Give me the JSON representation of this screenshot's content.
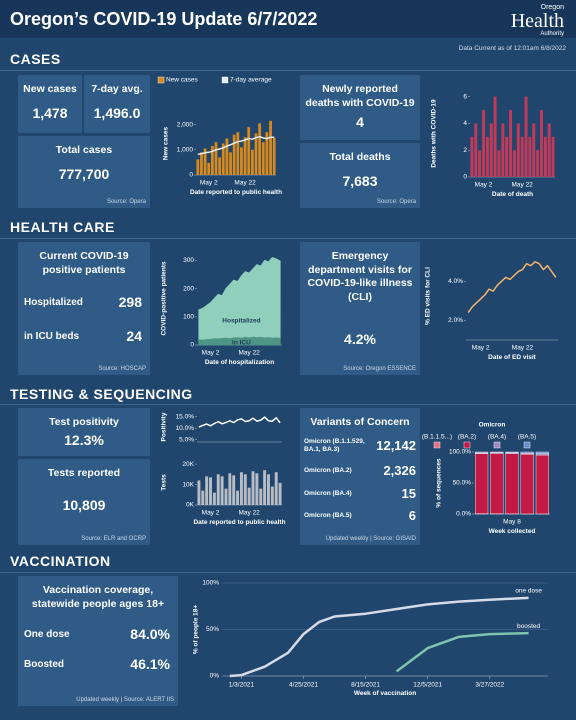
{
  "header": {
    "title": "Oregon’s COVID-19 Update 6/7/2022",
    "logo": {
      "top": "Oregon",
      "main": "Health",
      "sub": "Authority"
    },
    "data_current": "Data Current as of 12:01am 6/8/2022"
  },
  "cases": {
    "heading": "CASES",
    "new_cases_label": "New cases",
    "new_cases": "1,478",
    "avg_label": "7-day avg.",
    "avg": "1,496.0",
    "total_label": "Total cases",
    "total": "777,700",
    "source": "Source: Opera",
    "deaths_label": "Newly reported deaths with COVID-19",
    "deaths": "4",
    "total_deaths_label": "Total deaths",
    "total_deaths": "7,683",
    "deaths_source": "Source: Opera"
  },
  "health_care": {
    "heading": "HEALTH CARE",
    "patients_label": "Current COVID-19 positive patients",
    "hosp_label": "Hospitalized",
    "hosp": "298",
    "icu_label": "in ICU beds",
    "icu": "24",
    "source": "Source: HOSCAP",
    "ed_label": "Emergency department visits for COVID-19-like illness (CLI)",
    "ed": "4.2%",
    "ed_source": "Source: Oregon ESSENCE"
  },
  "testing": {
    "heading": "TESTING & SEQUENCING",
    "positivity_label": "Test positivity",
    "positivity": "12.3%",
    "tests_label": "Tests reported",
    "tests": "10,809",
    "source": "Source: ELR and OCRP",
    "variants_title": "Variants of Concern",
    "variants": [
      [
        "Omicron (B.1.1.529, BA.1, BA.3)",
        "12,142"
      ],
      [
        "Omicron (BA.2)",
        "2,326"
      ],
      [
        "Omicron (BA.4)",
        "15"
      ],
      [
        "Omicron (BA.5)",
        "6"
      ]
    ],
    "variants_source": "Updated weekly | Source: GISAID"
  },
  "vaccination": {
    "heading": "VACCINATION",
    "coverage_label": "Vaccination coverage, statewide people ages 18+",
    "one_dose_label": "One dose",
    "one_dose": "84.0%",
    "boosted_label": "Boosted",
    "boosted": "46.1%",
    "source": "Updated weekly | Source: ALERT IIS"
  },
  "chart_data": [
    {
      "type": "bar",
      "ylabel": "New cases",
      "xlabel": "Date reported to public health",
      "legend": "top",
      "categories": [
        null,
        null,
        null,
        "May 2",
        null,
        null,
        null,
        null,
        null,
        null,
        null,
        null,
        null,
        "May 22",
        null,
        null,
        null,
        null,
        null,
        null,
        null,
        null
      ],
      "series": [
        {
          "name": "New cases",
          "color": "#d98a1c",
          "values": [
            620,
            900,
            1050,
            480,
            1150,
            1300,
            700,
            1250,
            1450,
            900,
            1600,
            1700,
            1100,
            1500,
            1900,
            1000,
            1650,
            2050,
            1300,
            1700,
            2150,
            1478
          ]
        },
        {
          "name": "7-day average",
          "color": "#e8eef2",
          "type": "line",
          "values": [
            820,
            850,
            880,
            900,
            940,
            1000,
            1030,
            1080,
            1150,
            1200,
            1260,
            1320,
            1350,
            1390,
            1450,
            1420,
            1480,
            1520,
            1470,
            1440,
            1500,
            1496
          ]
        }
      ],
      "ylim": [
        0,
        2500
      ],
      "yticks": [
        0,
        {
          "value": 1000,
          "label": "1,000"
        },
        {
          "value": 2000,
          "label": "2,000"
        }
      ]
    },
    {
      "type": "bar",
      "ylabel": "Deaths with COVID-19",
      "xlabel": "Date of death",
      "categories": [
        null,
        null,
        null,
        "May 2",
        null,
        null,
        null,
        null,
        null,
        null,
        null,
        null,
        null,
        "May 22",
        null,
        null,
        null,
        null,
        null,
        null,
        null,
        null
      ],
      "series": [
        {
          "color": "#c23a5a",
          "values": [
            3,
            4,
            2,
            5,
            3,
            4,
            6,
            2,
            4,
            3,
            5,
            2,
            4,
            3,
            6,
            3,
            4,
            2,
            5,
            3,
            4,
            3
          ]
        }
      ],
      "ylim": [
        0,
        6.5
      ],
      "yticks": [
        0,
        2,
        4,
        6
      ]
    },
    {
      "type": "area",
      "ylabel": "COVID-positive patients",
      "xlabel": "Date of hospitalization",
      "series_labels": "inside",
      "categories": [
        null,
        null,
        null,
        "May 2",
        null,
        null,
        null,
        null,
        null,
        null,
        null,
        null,
        null,
        "May 22",
        null,
        null,
        null,
        null,
        null,
        null,
        null,
        null
      ],
      "series": [
        {
          "name": "Hospitalized",
          "color": "#8fcfbc",
          "values": [
            125,
            130,
            140,
            150,
            165,
            180,
            175,
            200,
            215,
            230,
            225,
            245,
            260,
            255,
            270,
            285,
            280,
            300,
            295,
            310,
            305,
            298
          ]
        },
        {
          "name": "In ICU",
          "color": "#4f9585",
          "values": [
            18,
            17,
            19,
            20,
            22,
            21,
            23,
            24,
            22,
            25,
            26,
            24,
            27,
            25,
            28,
            26,
            27,
            25,
            26,
            24,
            25,
            24
          ]
        }
      ],
      "ylim": [
        0,
        330
      ],
      "yticks": [
        0,
        100,
        200,
        300
      ]
    },
    {
      "type": "line",
      "ylabel": "% ED visits for CLI",
      "xlabel": "Date of ED visit",
      "categories": [
        null,
        null,
        null,
        "May 2",
        null,
        null,
        null,
        null,
        null,
        null,
        null,
        null,
        null,
        "May 22",
        null,
        null,
        null,
        null,
        null,
        null,
        null,
        null
      ],
      "series": [
        {
          "color": "#f2b36b",
          "values": [
            2.4,
            2.7,
            2.9,
            3.1,
            3.3,
            3.6,
            3.5,
            3.8,
            4.0,
            4.2,
            4.1,
            4.3,
            4.5,
            4.6,
            4.9,
            4.8,
            5.0,
            4.9,
            4.6,
            4.8,
            4.5,
            4.2
          ]
        }
      ],
      "ylim": [
        1,
        5.5
      ],
      "yticks": [
        {
          "value": 2,
          "label": "2.0%"
        },
        {
          "value": 4,
          "label": "4.0%"
        }
      ]
    },
    {
      "type": "line",
      "ylabel": "Positivity",
      "categories": [
        null,
        null,
        null,
        null,
        null,
        null,
        null,
        null,
        null,
        null,
        null,
        null,
        null,
        null,
        null,
        null,
        null,
        null,
        null,
        null,
        null,
        null
      ],
      "series": [
        {
          "color": "#ffffff",
          "values": [
            10.5,
            11.2,
            11.8,
            11.0,
            12.0,
            12.8,
            11.9,
            12.5,
            13.2,
            12.4,
            13.6,
            14.0,
            12.9,
            13.2,
            14.3,
            13.0,
            13.5,
            14.8,
            13.2,
            13.0,
            14.5,
            12.3
          ]
        }
      ],
      "ylim": [
        4,
        17
      ],
      "yticks": [
        {
          "value": 5,
          "label": "5.0%"
        },
        {
          "value": 10,
          "label": "10.0%"
        },
        {
          "value": 15,
          "label": "15.0%"
        }
      ]
    },
    {
      "type": "bar",
      "ylabel": "Tests",
      "xlabel": "Date reported to public health",
      "categories": [
        null,
        null,
        null,
        "May 2",
        null,
        null,
        null,
        null,
        null,
        null,
        null,
        null,
        null,
        "May 22",
        null,
        null,
        null,
        null,
        null,
        null,
        null,
        null
      ],
      "series": [
        {
          "color": "#b8bcc4",
          "values": [
            12000,
            7000,
            14000,
            13500,
            6000,
            15000,
            14000,
            8000,
            15500,
            14500,
            7000,
            16000,
            15000,
            8500,
            16500,
            15500,
            8000,
            17000,
            15000,
            9000,
            16000,
            10809
          ]
        }
      ],
      "ylim": [
        0,
        22000
      ],
      "yticks": [
        {
          "value": 0,
          "label": "0K"
        },
        {
          "value": 10000,
          "label": "10K"
        },
        {
          "value": 20000,
          "label": "20K"
        }
      ]
    },
    {
      "type": "stacked-bar",
      "ylabel": "% of sequences",
      "xlabel": "Week collected",
      "legend": "top",
      "legend_title": "Omicron",
      "categories": [
        null,
        null,
        "May 8",
        null,
        null
      ],
      "series": [
        {
          "name": "(B.1.1.5...)",
          "color": "#e07080",
          "values": [
            0.5,
            0.3,
            0.2,
            0.1,
            0.1
          ]
        },
        {
          "name": "(BA.2)",
          "color": "#c21a45",
          "values": [
            97,
            97.5,
            97,
            96.5,
            95
          ]
        },
        {
          "name": "(BA.4)",
          "color": "#a088c8",
          "values": [
            1,
            1,
            1.5,
            1.5,
            2
          ]
        },
        {
          "name": "(BA.5)",
          "color": "#6a8ccc",
          "values": [
            1.5,
            1.2,
            1.3,
            1.9,
            2.9
          ]
        }
      ],
      "ylim": [
        0,
        100
      ],
      "yticks": [
        {
          "value": 0,
          "label": "0.0%"
        },
        {
          "value": 50,
          "label": "50.0%"
        },
        {
          "value": 100,
          "label": "100.0%"
        }
      ]
    },
    {
      "type": "line",
      "ylabel": "% of people 18+",
      "xlabel": "Week of vaccination",
      "series_labels": "end",
      "grid": true,
      "x": [
        "12/13/2020",
        "1/3/2021",
        "2/14/2021",
        "3/28/2021",
        "4/25/2021",
        "5/23/2021",
        "6/20/2021",
        "8/15/2021",
        "10/10/2021",
        "12/5/2021",
        "1/30/2022",
        "3/27/2022",
        "6/5/2022"
      ],
      "xlim": [
        "11/29/2020",
        "7/10/2022"
      ],
      "xticks": [
        "1/3/2021",
        "4/25/2021",
        "8/15/2021",
        "12/5/2021",
        "3/27/2022"
      ],
      "series": [
        {
          "name": "one dose",
          "color": "#d6dbe6",
          "values": [
            0,
            1,
            10,
            25,
            45,
            58,
            64,
            67,
            72,
            77,
            80,
            82,
            84
          ]
        },
        {
          "name": "boosted",
          "color": "#7ec4b0",
          "values": [
            null,
            null,
            null,
            null,
            null,
            null,
            null,
            null,
            5,
            30,
            42,
            45,
            46.1
          ]
        }
      ],
      "ylim": [
        0,
        100
      ],
      "yticks": [
        {
          "value": 0,
          "label": "0%"
        },
        {
          "value": 50,
          "label": "50%"
        },
        {
          "value": 100,
          "label": "100%"
        }
      ]
    }
  ]
}
